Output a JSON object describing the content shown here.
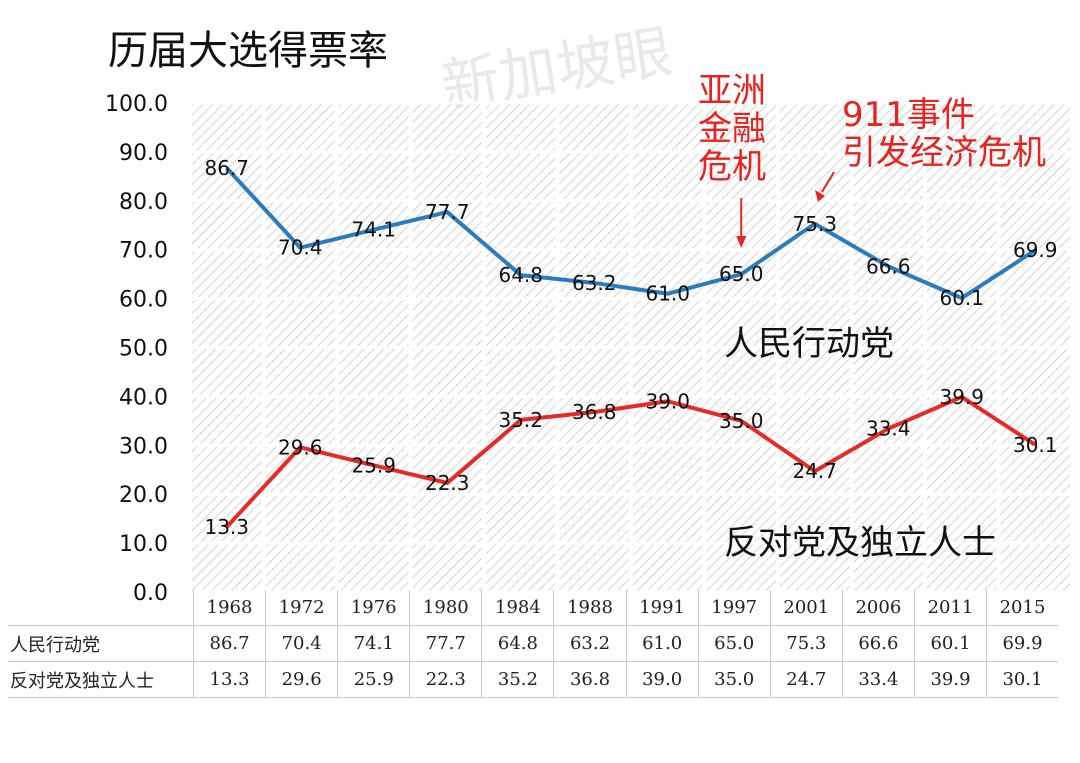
{
  "title": "历届大选得票率",
  "watermark": "新加坡眼",
  "annotations": {
    "asian_crisis": [
      "亚洲",
      "金融",
      "危机"
    ],
    "crisis_911": [
      "911事件",
      "引发经济危机"
    ]
  },
  "colors": {
    "pap": "#2b7bbf",
    "opposition": "#e62a26",
    "annotation": "#e8231f",
    "grid_hatch": "#b9b9b9",
    "axis_text": "#111111"
  },
  "chart_data": {
    "type": "line",
    "title": "历届大选得票率",
    "categories": [
      "1968",
      "1972",
      "1976",
      "1980",
      "1984",
      "1988",
      "1991",
      "1997",
      "2001",
      "2006",
      "2011",
      "2015"
    ],
    "ylim": [
      0,
      100
    ],
    "yticks": [
      "0.0",
      "10.0",
      "20.0",
      "30.0",
      "40.0",
      "50.0",
      "60.0",
      "70.0",
      "80.0",
      "90.0",
      "100.0"
    ],
    "grid": true,
    "series": [
      {
        "name": "人民行动党",
        "values": [
          86.7,
          70.4,
          74.1,
          77.7,
          64.8,
          63.2,
          61.0,
          65.0,
          75.3,
          66.6,
          60.1,
          69.9
        ],
        "labels": [
          "86.7",
          "70.4",
          "74.1",
          "77.7",
          "64.8",
          "63.2",
          "61.0",
          "65.0",
          "75.3",
          "66.6",
          "60.1",
          "69.9"
        ]
      },
      {
        "name": "反对党及独立人士",
        "values": [
          13.3,
          29.6,
          25.9,
          22.3,
          35.2,
          36.8,
          39.0,
          35.0,
          24.7,
          33.4,
          39.9,
          30.1
        ],
        "labels": [
          "13.3",
          "29.6",
          "25.9",
          "22.3",
          "35.2",
          "36.8",
          "39.0",
          "35.0",
          "24.7",
          "33.4",
          "39.9",
          "30.1"
        ]
      }
    ]
  },
  "table": {
    "rows": [
      {
        "label": "人民行动党",
        "cells": [
          "86.7",
          "70.4",
          "74.1",
          "77.7",
          "64.8",
          "63.2",
          "61.0",
          "65.0",
          "75.3",
          "66.6",
          "60.1",
          "69.9"
        ]
      },
      {
        "label": "反对党及独立人士",
        "cells": [
          "13.3",
          "29.6",
          "25.9",
          "22.3",
          "35.2",
          "36.8",
          "39.0",
          "35.0",
          "24.7",
          "33.4",
          "39.9",
          "30.1"
        ]
      }
    ]
  }
}
